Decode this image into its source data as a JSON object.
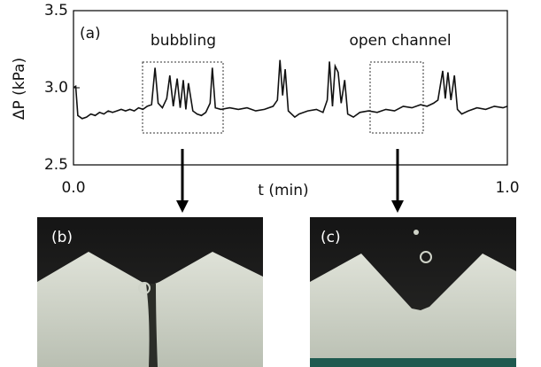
{
  "chart_data": {
    "type": "line",
    "title": "(a)",
    "xlabel": "t (min)",
    "ylabel": "ΔP (kPa)",
    "annotations": [
      "bubbling",
      "open channel"
    ],
    "panels": [
      "(b)",
      "(c)"
    ],
    "color": "#111111",
    "xlim": [
      0,
      1.0
    ],
    "ylim": [
      2.5,
      3.5
    ],
    "xticks": [
      {
        "value": 0,
        "label": "0.0"
      },
      {
        "value": 1.0,
        "label": "1.0"
      }
    ],
    "yticks": [
      2.5,
      {
        "value": 3.0,
        "label": "3.0"
      },
      3.5
    ],
    "x": [
      0,
      0.005,
      0.01,
      0.02,
      0.03,
      0.04,
      0.05,
      0.06,
      0.07,
      0.08,
      0.09,
      0.1,
      0.11,
      0.12,
      0.13,
      0.14,
      0.15,
      0.16,
      0.17,
      0.18,
      0.188,
      0.195,
      0.205,
      0.215,
      0.222,
      0.23,
      0.239,
      0.246,
      0.253,
      0.259,
      0.265,
      0.275,
      0.285,
      0.295,
      0.305,
      0.315,
      0.32,
      0.327,
      0.34,
      0.36,
      0.38,
      0.4,
      0.42,
      0.44,
      0.46,
      0.47,
      0.476,
      0.482,
      0.488,
      0.495,
      0.51,
      0.52,
      0.54,
      0.56,
      0.575,
      0.585,
      0.59,
      0.597,
      0.603,
      0.61,
      0.617,
      0.625,
      0.632,
      0.645,
      0.66,
      0.68,
      0.7,
      0.72,
      0.74,
      0.76,
      0.78,
      0.8,
      0.815,
      0.83,
      0.84,
      0.851,
      0.857,
      0.863,
      0.87,
      0.878,
      0.885,
      0.895,
      0.91,
      0.93,
      0.95,
      0.97,
      0.99,
      1.0
    ],
    "values": [
      3.0,
      3.01,
      2.82,
      2.8,
      2.81,
      2.83,
      2.82,
      2.84,
      2.83,
      2.85,
      2.84,
      2.85,
      2.86,
      2.85,
      2.86,
      2.85,
      2.87,
      2.86,
      2.88,
      2.89,
      3.13,
      2.9,
      2.87,
      2.93,
      3.08,
      2.88,
      3.06,
      2.87,
      3.05,
      2.86,
      3.03,
      2.85,
      2.83,
      2.82,
      2.84,
      2.9,
      3.13,
      2.87,
      2.86,
      2.87,
      2.86,
      2.87,
      2.85,
      2.86,
      2.88,
      2.92,
      3.18,
      2.95,
      3.12,
      2.85,
      2.81,
      2.83,
      2.85,
      2.86,
      2.84,
      2.92,
      3.17,
      2.88,
      3.14,
      3.1,
      2.9,
      3.05,
      2.83,
      2.81,
      2.84,
      2.85,
      2.84,
      2.86,
      2.85,
      2.88,
      2.87,
      2.89,
      2.88,
      2.9,
      2.92,
      3.11,
      2.93,
      3.1,
      2.92,
      3.08,
      2.86,
      2.83,
      2.85,
      2.87,
      2.86,
      2.88,
      2.87,
      2.88
    ]
  }
}
